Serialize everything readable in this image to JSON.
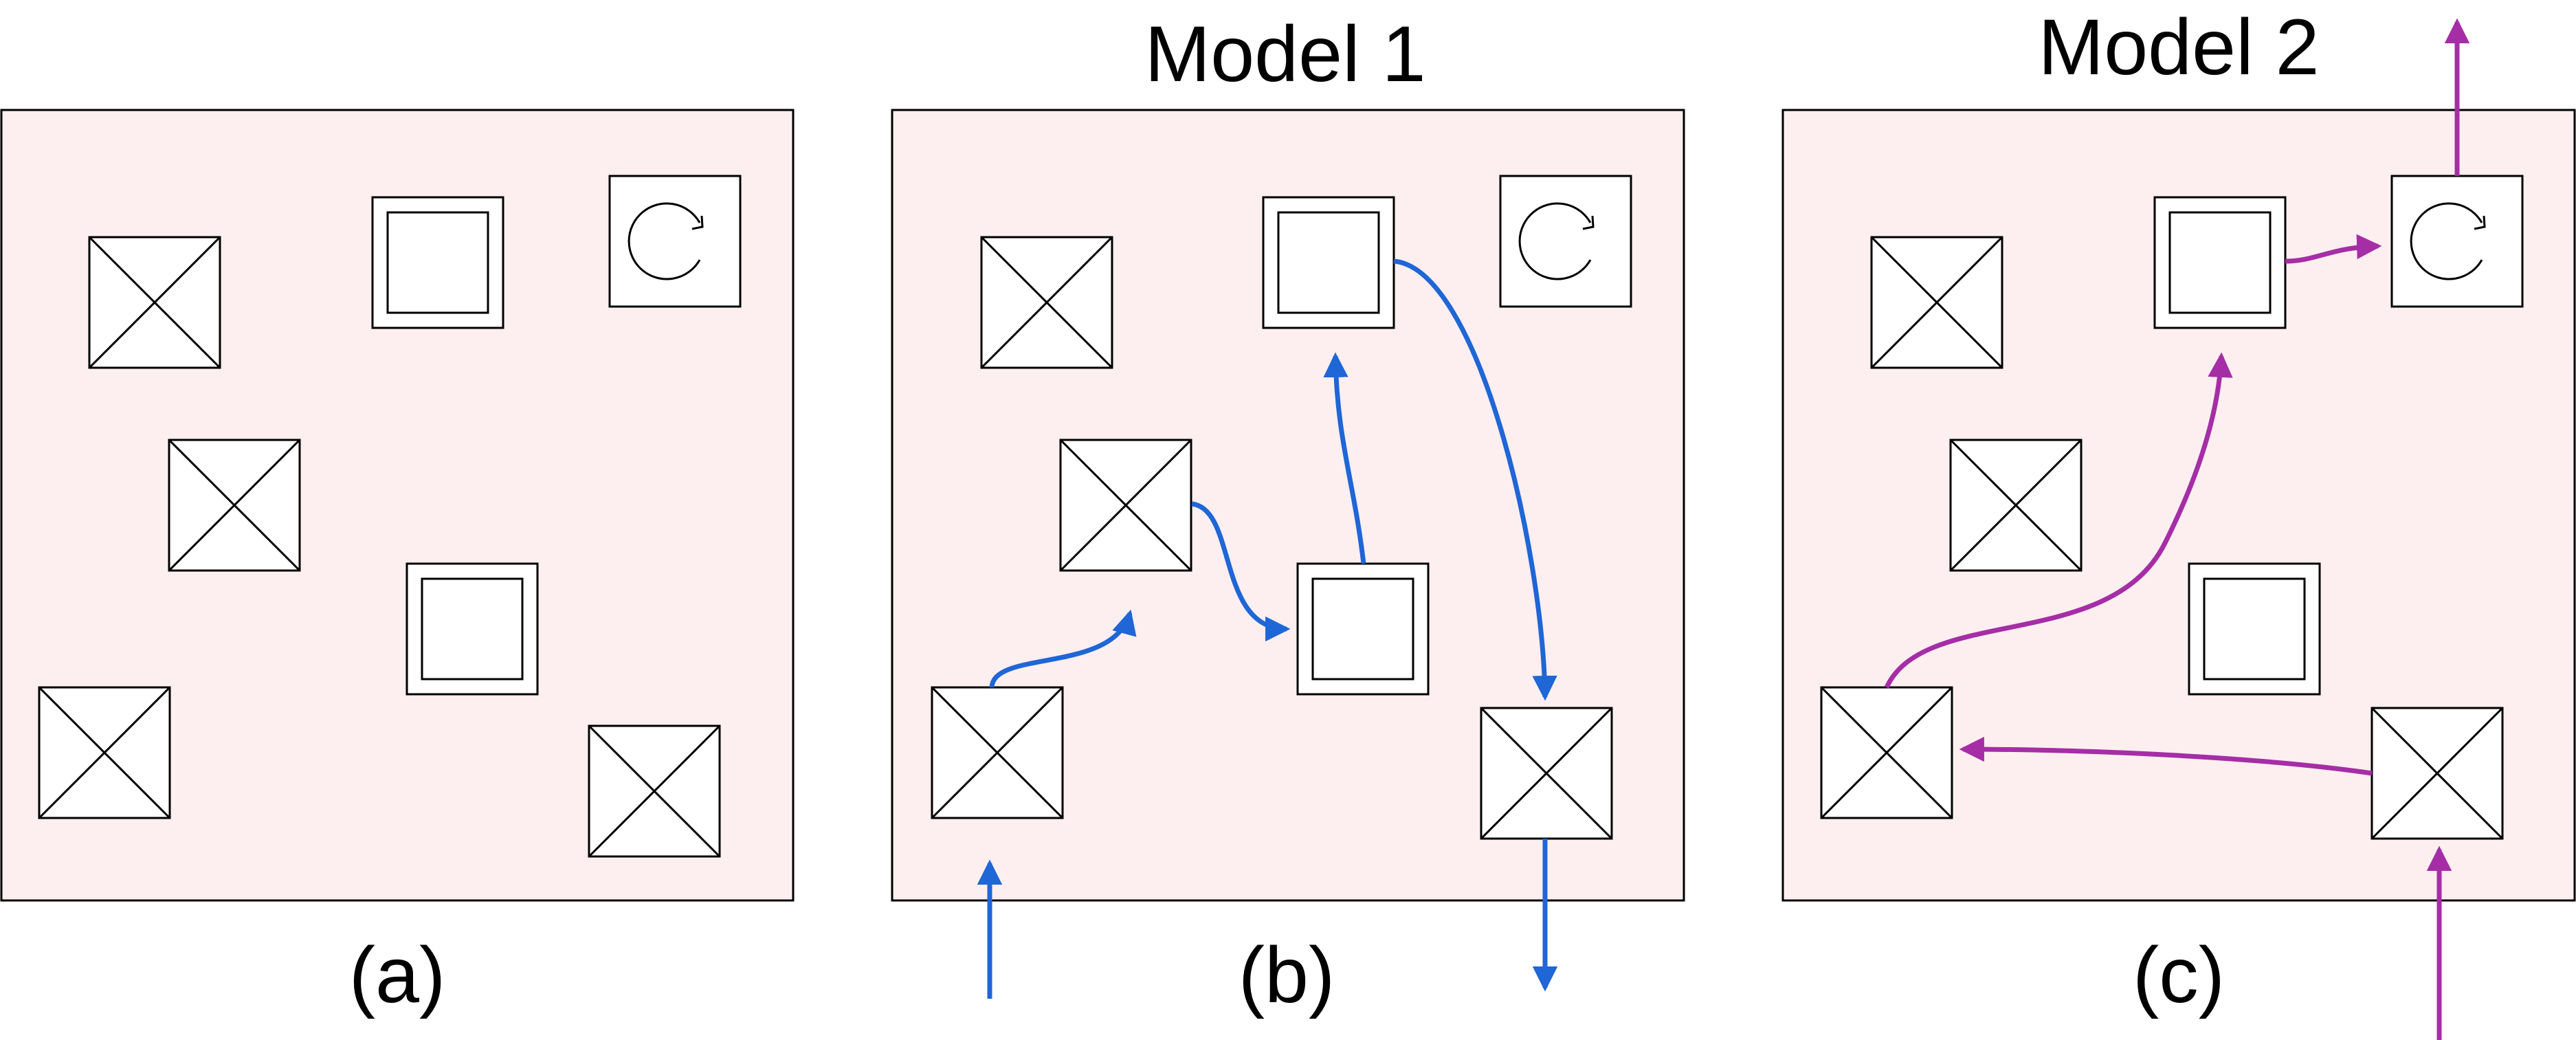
{
  "colors": {
    "panel_fill": "#fdeff0",
    "panel_stroke": "#000000",
    "model1_arrow": "#1f66d6",
    "model2_arrow": "#a52ea6"
  },
  "panels": [
    {
      "id": "a",
      "title": "",
      "caption": "(a)"
    },
    {
      "id": "b",
      "title": "Model 1",
      "caption": "(b)"
    },
    {
      "id": "c",
      "title": "Model 2",
      "caption": "(c)"
    }
  ],
  "node_types": {
    "crossed": "crossed-square-icon",
    "double": "double-square-icon",
    "rotate": "rotate-arrow-icon"
  },
  "layout_nodes": [
    {
      "id": 1,
      "type": "crossed"
    },
    {
      "id": 2,
      "type": "double"
    },
    {
      "id": 3,
      "type": "rotate"
    },
    {
      "id": 4,
      "type": "crossed"
    },
    {
      "id": 5,
      "type": "double"
    },
    {
      "id": 6,
      "type": "crossed"
    },
    {
      "id": 7,
      "type": "crossed"
    }
  ],
  "model1_path": [
    "input",
    6,
    4,
    5,
    2,
    7,
    "output"
  ],
  "model2_path": [
    "input",
    7,
    6,
    2,
    3,
    "output"
  ]
}
